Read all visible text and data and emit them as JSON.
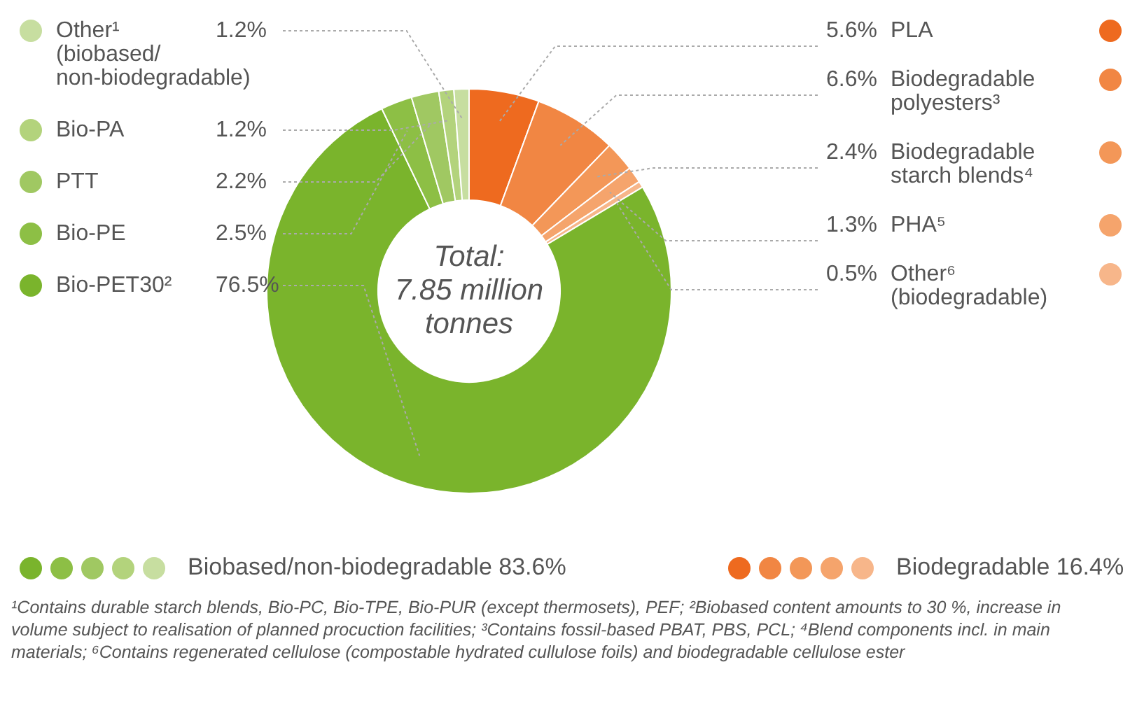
{
  "chart_data": {
    "type": "donut",
    "title": "Total:\n7.85 million\ntonnes",
    "categories": [
      "PLA",
      "Biodegradable polyesters³",
      "Biodegradable starch blends⁴",
      "PHA⁵",
      "Other⁶ (biodegradable)",
      "Bio-PET30²",
      "Bio-PE",
      "PTT",
      "Bio-PA",
      "Other¹ (biobased/ non-biodegradable)"
    ],
    "values": [
      5.6,
      6.6,
      2.4,
      1.3,
      0.5,
      76.5,
      2.5,
      2.2,
      1.2,
      1.2
    ],
    "value_labels": [
      "5.6%",
      "6.6%",
      "2.4%",
      "1.3%",
      "0.5%",
      "76.5%",
      "2.5%",
      "2.2%",
      "1.2%",
      "1.2%"
    ],
    "colors": [
      "#ee6a1f",
      "#f18643",
      "#f39758",
      "#f5a46c",
      "#f7b68a",
      "#7ab42c",
      "#8dbf45",
      "#a0c862",
      "#b3d37c",
      "#c7dea0"
    ],
    "legend": "left",
    "annotations": [
      "Biobased/non-biodegradable 83.6%",
      "Biodegradable 16.4%",
      "¹Contains durable starch blends, Bio-PC, Bio-TPE, Bio-PUR (except thermosets), PEF; ²Biobased content amounts to 30 %, increase in volume subject to realisation of planned procuction facilities; ³Contains fossil-based PBAT, PBS, PCL; ⁴Blend components incl. in main materials; ⁶Contains regenerated cellulose (compostable hydrated cullulose foils) and biodegradable cellulose ester"
    ]
  }
}
